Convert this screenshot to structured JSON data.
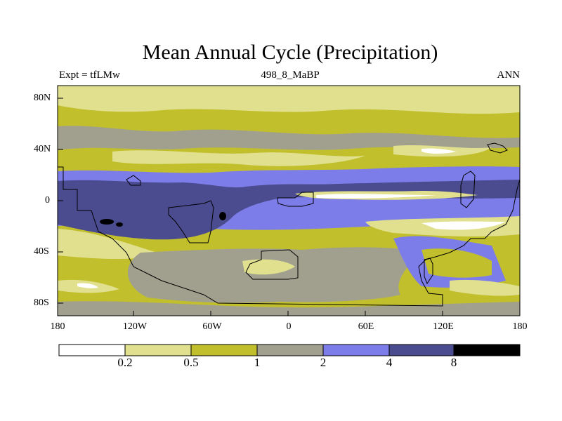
{
  "title": "Mean Annual Cycle (Precipitation)",
  "subtitle_left": "Expt = tfLMw",
  "subtitle_center": "498_8_MaBP",
  "subtitle_right": "ANN",
  "y_axis_labels": [
    "80N",
    "40N",
    "0",
    "40S",
    "80S"
  ],
  "x_axis_labels": [
    "180",
    "120W",
    "60W",
    "0",
    "60E",
    "120E",
    "180"
  ],
  "colorbar": {
    "labels": [
      "0.2",
      "0.5",
      "1",
      "2",
      "4",
      "8"
    ],
    "colors": [
      "#ffffff",
      "#e1e08e",
      "#c1bf2c",
      "#a1a08f",
      "#7d7dea",
      "#4b4b8f",
      "#000000"
    ]
  }
}
